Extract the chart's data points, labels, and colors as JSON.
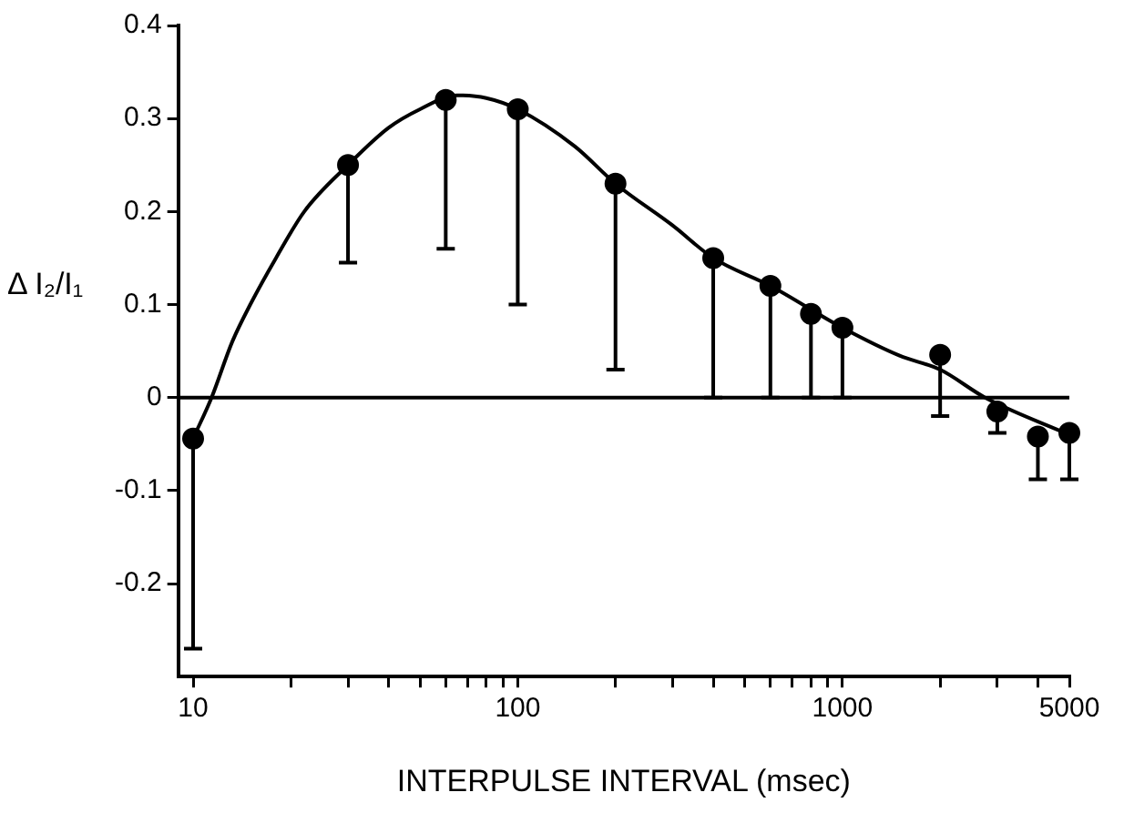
{
  "chart_data": {
    "type": "scatter",
    "xlabel": "INTERPULSE INTERVAL (msec)",
    "ylabel": "Δ I₂/I₁",
    "log": "x",
    "xlim": [
      9,
      5000
    ],
    "xticks": [
      10,
      {
        "value": 20,
        "label": null
      },
      {
        "value": 30,
        "label": null
      },
      {
        "value": 40,
        "label": null
      },
      {
        "value": 50,
        "label": null
      },
      {
        "value": 60,
        "label": null
      },
      {
        "value": 70,
        "label": null
      },
      {
        "value": 80,
        "label": null
      },
      {
        "value": 90,
        "label": null
      },
      100,
      {
        "value": 200,
        "label": null
      },
      {
        "value": 300,
        "label": null
      },
      {
        "value": 400,
        "label": null
      },
      {
        "value": 500,
        "label": null
      },
      {
        "value": 600,
        "label": null
      },
      {
        "value": 700,
        "label": null
      },
      {
        "value": 800,
        "label": null
      },
      {
        "value": 900,
        "label": null
      },
      1000,
      {
        "value": 2000,
        "label": null
      },
      {
        "value": 3000,
        "label": null
      },
      {
        "value": 4000,
        "label": null
      },
      5000
    ],
    "ylim": [
      -0.3,
      0.4
    ],
    "yticks": [
      {
        "value": -0.2,
        "label": "-0.2"
      },
      {
        "value": -0.1,
        "label": "-0.1"
      },
      0,
      {
        "value": 0.1,
        "label": "0.1"
      },
      {
        "value": 0.2,
        "label": "0.2"
      },
      {
        "value": 0.3,
        "label": "0.3"
      },
      {
        "value": 0.4,
        "label": "0.4"
      }
    ],
    "grid": false,
    "legend": false,
    "marker": "circle",
    "ref_lines": [
      {
        "axis": "y",
        "value": 0,
        "color": "#000000"
      }
    ],
    "series": [
      {
        "color": "#000000",
        "x": [
          10,
          30,
          60,
          100,
          200,
          400,
          600,
          800,
          1000,
          2000,
          3000,
          4000,
          5000
        ],
        "values": [
          -0.044,
          0.25,
          0.32,
          0.31,
          0.23,
          0.15,
          0.12,
          0.09,
          0.075,
          0.046,
          -0.015,
          -0.042,
          -0.038
        ],
        "errors": [
          [
            -0.27,
            -0.044
          ],
          [
            0.145,
            0.25
          ],
          [
            0.16,
            0.32
          ],
          [
            0.1,
            0.31
          ],
          [
            0.03,
            0.23
          ],
          [
            0,
            0.15
          ],
          [
            0,
            0.12
          ],
          [
            0,
            0.09
          ],
          [
            0,
            0.075
          ],
          [
            -0.02,
            0.046
          ],
          [
            -0.038,
            -0.015
          ],
          [
            -0.088,
            -0.042
          ],
          [
            -0.088,
            -0.038
          ]
        ]
      },
      {
        "type": "line",
        "color": "#000000",
        "marker": "none",
        "line_style": "solid",
        "x": [
          10,
          11.4,
          13.2,
          15,
          18,
          22,
          30,
          40,
          50,
          65,
          80,
          100,
          150,
          200,
          300,
          400,
          600,
          1000,
          1500,
          2000,
          2750,
          5000
        ],
        "values": [
          -0.044,
          0,
          0.06,
          0.1,
          0.15,
          0.2,
          0.25,
          0.29,
          0.31,
          0.325,
          0.322,
          0.31,
          0.27,
          0.23,
          0.185,
          0.15,
          0.12,
          0.075,
          0.045,
          0.03,
          0,
          -0.04
        ]
      }
    ]
  }
}
